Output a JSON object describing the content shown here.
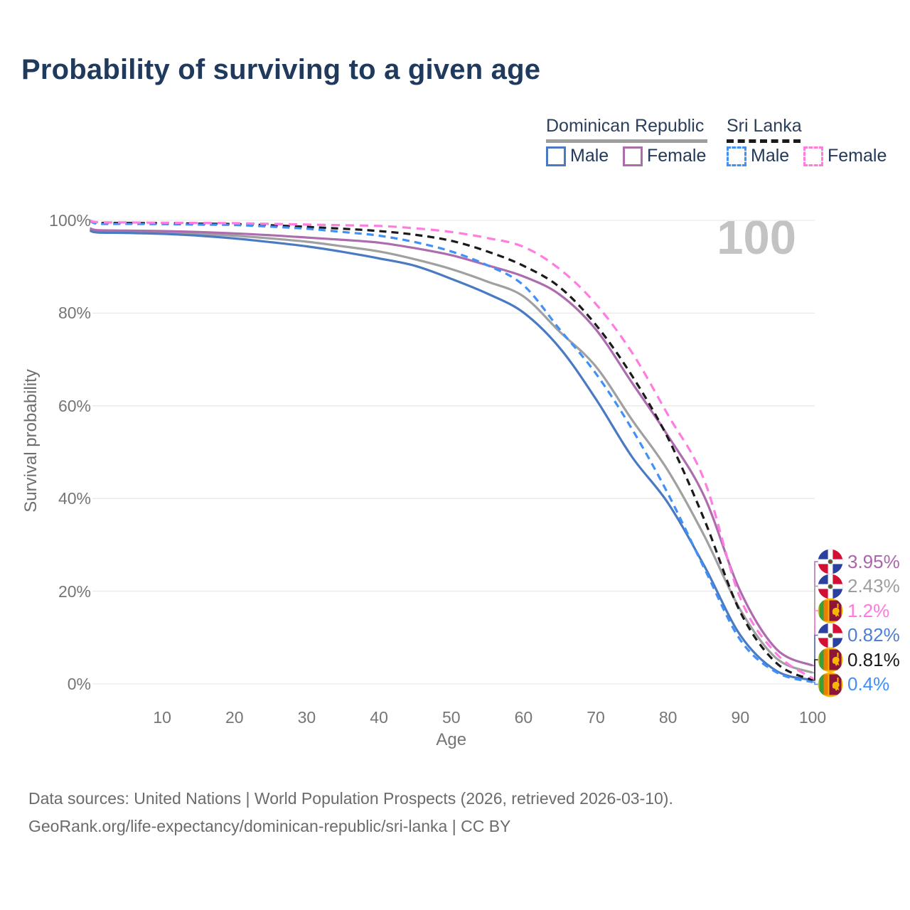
{
  "title": "Probability of surviving to a given age",
  "watermark": "100",
  "legend": {
    "groups": [
      {
        "name": "Dominican Republic",
        "line_style": "solid",
        "line_color": "#9e9e9e",
        "items": [
          {
            "label": "Male",
            "color": "#4a7ac2",
            "dashed": false
          },
          {
            "label": "Female",
            "color": "#ad6cad",
            "dashed": false
          }
        ]
      },
      {
        "name": "Sri Lanka",
        "line_style": "dashed",
        "line_color": "#1a1a1a",
        "items": [
          {
            "label": "Male",
            "color": "#4090f7",
            "dashed": true
          },
          {
            "label": "Female",
            "color": "#ff7ce0",
            "dashed": true
          }
        ]
      }
    ]
  },
  "chart_data": {
    "type": "line",
    "title": "Probability of surviving to a given age",
    "xlabel": "Age",
    "ylabel": "Survival probability",
    "xlim": [
      0,
      100
    ],
    "ylim": [
      0,
      100
    ],
    "grid": "horizontal-only",
    "x_ticks": [
      10,
      20,
      30,
      40,
      50,
      60,
      70,
      80,
      90,
      100
    ],
    "y_ticks": [
      {
        "value": 0,
        "label": "0%"
      },
      {
        "value": 20,
        "label": "20%"
      },
      {
        "value": 40,
        "label": "40%"
      },
      {
        "value": 60,
        "label": "60%"
      },
      {
        "value": 80,
        "label": "80%"
      },
      {
        "value": 100,
        "label": "100%"
      }
    ],
    "x": [
      0,
      1,
      5,
      10,
      15,
      20,
      25,
      30,
      35,
      40,
      45,
      50,
      55,
      60,
      65,
      70,
      75,
      80,
      85,
      90,
      95,
      100
    ],
    "series": [
      {
        "name": "Dominican Republic",
        "sex": "Both",
        "color": "#a0a0a0",
        "dash": "solid",
        "values": [
          98.0,
          97.6,
          97.5,
          97.4,
          97.1,
          96.7,
          96.1,
          95.4,
          94.4,
          93.3,
          91.6,
          89.5,
          86.8,
          83.6,
          76.0,
          68.5,
          57.0,
          46.0,
          32.0,
          16.0,
          5.5,
          2.43
        ],
        "end_label": "2.43%",
        "end_label_color": "#9e9e9e",
        "flag": "dominican-republic"
      },
      {
        "name": "Dominican Republic",
        "sex": "Male",
        "color": "#4a7ac2",
        "dash": "solid",
        "values": [
          97.8,
          97.4,
          97.3,
          97.1,
          96.7,
          96.1,
          95.3,
          94.4,
          93.2,
          91.8,
          90.2,
          87.4,
          84.2,
          80.1,
          72.5,
          61.5,
          49.0,
          39.0,
          25.5,
          10.5,
          2.8,
          0.82
        ],
        "end_label": "0.82%",
        "end_label_color": "#4d7ed3",
        "flag": "dominican-republic"
      },
      {
        "name": "Dominican Republic",
        "sex": "Female",
        "color": "#ad6cad",
        "dash": "solid",
        "values": [
          98.3,
          97.9,
          97.8,
          97.7,
          97.5,
          97.2,
          96.8,
          96.3,
          95.8,
          95.2,
          94.0,
          92.5,
          90.3,
          87.9,
          84.0,
          76.5,
          65.0,
          53.5,
          40.5,
          20.0,
          7.5,
          3.95
        ],
        "end_label": "3.95%",
        "end_label_color": "#aa66aa",
        "flag": "dominican-republic"
      },
      {
        "name": "Sri Lanka",
        "sex": "Both",
        "color": "#1a1a1a",
        "dash": "dashed",
        "values": [
          100,
          99.5,
          99.45,
          99.4,
          99.3,
          99.2,
          98.95,
          98.6,
          98.2,
          97.7,
          96.9,
          95.6,
          93.3,
          90.2,
          85.6,
          77.5,
          66.5,
          53.0,
          35.5,
          15.5,
          4.5,
          0.81
        ],
        "end_label": "0.81%",
        "end_label_color": "#1a1a1a",
        "flag": "sri-lanka"
      },
      {
        "name": "Sri Lanka",
        "sex": "Male",
        "color": "#4090f7",
        "dash": "dashed",
        "values": [
          100,
          99.3,
          99.25,
          99.2,
          99.1,
          99.0,
          98.65,
          98.2,
          97.5,
          96.7,
          95.3,
          93.3,
          90.3,
          86.0,
          76.5,
          67.0,
          55.0,
          41.0,
          25.0,
          9.5,
          2.5,
          0.4
        ],
        "end_label": "0.4%",
        "end_label_color": "#3f8efa",
        "flag": "sri-lanka"
      },
      {
        "name": "Sri Lanka",
        "sex": "Female",
        "color": "#ff7ce0",
        "dash": "dashed",
        "values": [
          100,
          99.6,
          99.55,
          99.5,
          99.45,
          99.4,
          99.25,
          99.1,
          98.95,
          98.8,
          98.3,
          97.5,
          96.2,
          94.3,
          89.5,
          82.0,
          71.5,
          58.0,
          44.0,
          18.5,
          6.5,
          1.2
        ],
        "end_label": "1.2%",
        "end_label_color": "#ff77df",
        "flag": "sri-lanka"
      }
    ],
    "legend_position": "top-right",
    "annotations": [
      "100"
    ]
  },
  "flags": {
    "dominican_republic": {
      "icon": "dominican-republic-flag-icon",
      "blue": "#2a41a0",
      "red": "#d21034",
      "cross": "#ffffff",
      "emblem_green": "#3a7d44"
    },
    "sri_lanka": {
      "icon": "sri-lanka-flag-icon",
      "gold": "#f5b700",
      "green": "#37a03c",
      "orange": "#f07d00",
      "maroon": "#8d153a"
    }
  },
  "footer": {
    "line1": "Data sources: United Nations | World Population Prospects (2026, retrieved 2026-03-10).",
    "line2": "GeoRank.org/life-expectancy/dominican-republic/sri-lanka | CC BY"
  }
}
